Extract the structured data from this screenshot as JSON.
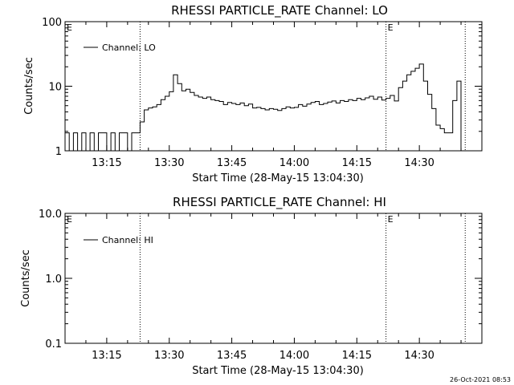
{
  "chart_data": [
    {
      "type": "line",
      "title": "RHESSI PARTICLE_RATE Channel: LO",
      "xlabel": "Start Time (28-May-15 13:04:30)",
      "ylabel": "Counts/sec",
      "yscale": "log",
      "ylim": [
        1,
        100
      ],
      "yticks": [
        1,
        10,
        100
      ],
      "ytick_labels": [
        "1",
        "10",
        "100"
      ],
      "xlim": [
        "13:05",
        "14:45"
      ],
      "xticks": [
        "13:15",
        "13:30",
        "13:45",
        "14:00",
        "14:15",
        "14:30"
      ],
      "legend": "top-left",
      "markers": [
        {
          "time": "13:23",
          "label": ""
        },
        {
          "time": "14:22",
          "label": "E"
        },
        {
          "time": "14:41",
          "label": ""
        }
      ],
      "corner_label": "E",
      "series": [
        {
          "name": "Channel: LO",
          "x": [
            "13:05",
            "13:06",
            "13:07",
            "13:08",
            "13:09",
            "13:10",
            "13:11",
            "13:12",
            "13:13",
            "13:14",
            "13:15",
            "13:16",
            "13:17",
            "13:18",
            "13:19",
            "13:20",
            "13:21",
            "13:22",
            "13:23",
            "13:24",
            "13:25",
            "13:26",
            "13:27",
            "13:28",
            "13:29",
            "13:30",
            "13:31",
            "13:32",
            "13:33",
            "13:34",
            "13:35",
            "13:36",
            "13:37",
            "13:38",
            "13:39",
            "13:40",
            "13:41",
            "13:42",
            "13:43",
            "13:44",
            "13:45",
            "13:46",
            "13:47",
            "13:48",
            "13:49",
            "13:50",
            "13:51",
            "13:52",
            "13:53",
            "13:54",
            "13:55",
            "13:56",
            "13:57",
            "13:58",
            "13:59",
            "14:00",
            "14:01",
            "14:02",
            "14:03",
            "14:04",
            "14:05",
            "14:06",
            "14:07",
            "14:08",
            "14:09",
            "14:10",
            "14:11",
            "14:12",
            "14:13",
            "14:14",
            "14:15",
            "14:16",
            "14:17",
            "14:18",
            "14:19",
            "14:20",
            "14:21",
            "14:22",
            "14:23",
            "14:24",
            "14:25",
            "14:26",
            "14:27",
            "14:28",
            "14:29",
            "14:30",
            "14:31",
            "14:32",
            "14:33",
            "14:34",
            "14:35",
            "14:36",
            "14:37",
            "14:38",
            "14:39",
            "14:40"
          ],
          "values": [
            1.9,
            1,
            1.9,
            1,
            1.9,
            1,
            1.9,
            1,
            1.9,
            1.9,
            1,
            1.9,
            1,
            1.9,
            1.9,
            1,
            1.9,
            1.9,
            2.8,
            4.3,
            4.6,
            4.8,
            5.2,
            6.2,
            7.0,
            8.2,
            15.0,
            11.0,
            8.5,
            9.0,
            8.0,
            7.2,
            6.8,
            6.5,
            6.8,
            6.2,
            6.0,
            5.8,
            5.2,
            5.6,
            5.4,
            5.2,
            5.5,
            5.0,
            5.3,
            4.6,
            4.7,
            4.5,
            4.3,
            4.5,
            4.4,
            4.2,
            4.5,
            4.8,
            4.6,
            4.7,
            5.2,
            4.9,
            5.3,
            5.6,
            5.8,
            5.2,
            5.4,
            5.7,
            5.9,
            5.5,
            6.0,
            5.8,
            6.2,
            6.0,
            6.5,
            6.2,
            6.6,
            7.0,
            6.3,
            6.8,
            6.1,
            6.5,
            7.2,
            5.9,
            9.5,
            12,
            15,
            17,
            19,
            22,
            12,
            7.5,
            4.5,
            2.5,
            2.2,
            1.9,
            1.9,
            6.0,
            12,
            1.0
          ]
        }
      ]
    },
    {
      "type": "line",
      "title": "RHESSI PARTICLE_RATE Channel: HI",
      "xlabel": "Start Time (28-May-15 13:04:30)",
      "ylabel": "Counts/sec",
      "yscale": "log",
      "ylim": [
        0.1,
        10
      ],
      "yticks": [
        0.1,
        1,
        10
      ],
      "ytick_labels": [
        "0.1",
        "1.0",
        "10.0"
      ],
      "xlim": [
        "13:05",
        "14:45"
      ],
      "xticks": [
        "13:15",
        "13:30",
        "13:45",
        "14:00",
        "14:15",
        "14:30"
      ],
      "legend": "top-left",
      "markers": [
        {
          "time": "13:23",
          "label": ""
        },
        {
          "time": "14:22",
          "label": "E"
        },
        {
          "time": "14:41",
          "label": ""
        }
      ],
      "corner_label": "E",
      "series": [
        {
          "name": "Channel: HI",
          "x": [],
          "values": []
        }
      ]
    }
  ],
  "footer": {
    "timestamp": "26-Oct-2021 08:53"
  }
}
